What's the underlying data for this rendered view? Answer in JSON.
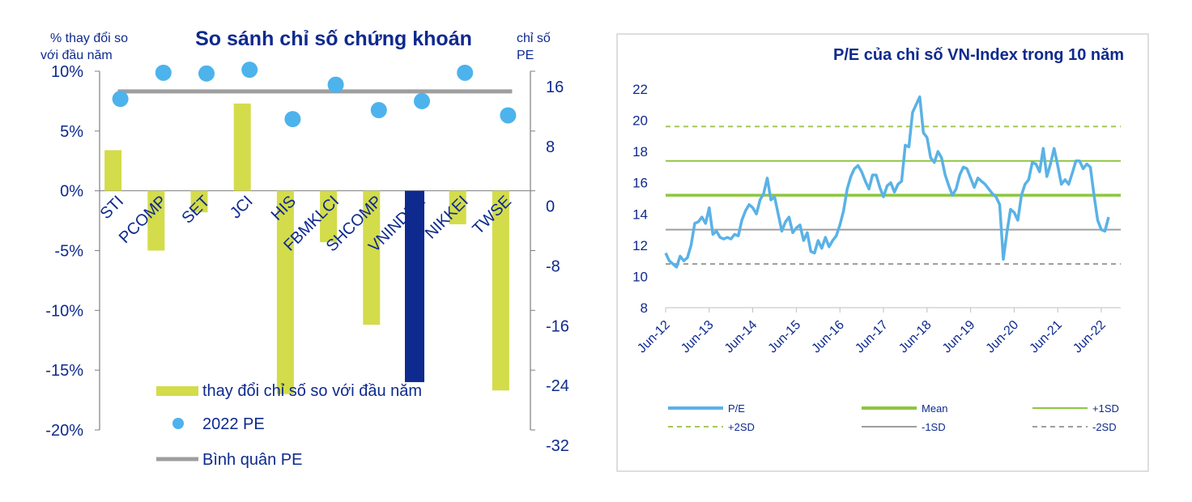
{
  "colors": {
    "bar": "#D3DC4A",
    "bar_highlight": "#0E2A8E",
    "dot": "#4DB3EC",
    "avg_line": "#9E9E9E",
    "text": "#0E2A8E",
    "axis": "#7F7F7F",
    "pe_line": "#5AB2E6",
    "mean": "#8DC63F",
    "sd1": "#8DC63F",
    "sd2": "#A6C75A",
    "neg_sd": "#9E9E9E"
  },
  "chart_data": [
    {
      "type": "bar",
      "title": "So sánh chỉ số chứng khoán",
      "left_axis_label_line1": "% thay đổi so",
      "left_axis_label_line2": "với đầu năm",
      "right_axis_label_line1": "chỉ số",
      "right_axis_label_line2": "PE",
      "categories": [
        "STI",
        "PCOMP",
        "SET",
        "JCI",
        "HIS",
        "FBMKLCI",
        "SHCOMP",
        "VNINDEX",
        "NIKKEI",
        "TWSE"
      ],
      "left_ticks": [
        "10%",
        "5%",
        "0%",
        "-5%",
        "-10%",
        "-15%",
        "-20%"
      ],
      "right_ticks": [
        "16",
        "8",
        "0",
        "-8",
        "-16",
        "-24",
        "-32"
      ],
      "ylim_left": [
        -20,
        10
      ],
      "ylim_right": [
        -32,
        16
      ],
      "series": [
        {
          "name": "thay đổi chỉ số so với đầu năm",
          "kind": "bar",
          "axis": "left",
          "values": [
            3.4,
            -5.0,
            -1.8,
            7.3,
            -17.0,
            -4.3,
            -11.2,
            -16.0,
            -2.8,
            -16.7
          ]
        },
        {
          "name": "2022 PE",
          "kind": "dot",
          "axis": "right",
          "values": [
            12.3,
            15.8,
            15.7,
            16.2,
            9.6,
            14.2,
            10.8,
            12.0,
            15.8,
            10.1
          ]
        },
        {
          "name": "Bình quân PE",
          "kind": "line",
          "axis": "right",
          "values": [
            13.3,
            13.3,
            13.3,
            13.3,
            13.3,
            13.3,
            13.3,
            13.3,
            13.3,
            13.3
          ]
        }
      ],
      "highlight_category": "VNINDEX",
      "legend": [
        "thay đổi chỉ số so với đầu năm",
        "2022 PE",
        "Bình quân PE"
      ]
    },
    {
      "type": "line",
      "title": "P/E của chỉ số VN-Index trong 10 năm",
      "yticks": [
        "22",
        "20",
        "18",
        "16",
        "14",
        "12",
        "10",
        "8"
      ],
      "ylim": [
        8,
        22
      ],
      "xlim": [
        0,
        120
      ],
      "xticks": [
        {
          "label": "Jun-12",
          "x": 0
        },
        {
          "label": "Jun-13",
          "x": 12
        },
        {
          "label": "Jun-14",
          "x": 24
        },
        {
          "label": "Jun-15",
          "x": 36
        },
        {
          "label": "Jun-16",
          "x": 48
        },
        {
          "label": "Jun-17",
          "x": 60
        },
        {
          "label": "Jun-18",
          "x": 72
        },
        {
          "label": "Jun-19",
          "x": 84
        },
        {
          "label": "Jun-20",
          "x": 96
        },
        {
          "label": "Jun-21",
          "x": 108
        },
        {
          "label": "Jun-22",
          "x": 120
        }
      ],
      "reference_lines": [
        {
          "name": "Mean",
          "value": 15.2
        },
        {
          "name": "+1SD",
          "value": 17.4
        },
        {
          "name": "+2SD",
          "value": 19.6
        },
        {
          "name": "-1SD",
          "value": 13.0
        },
        {
          "name": "-2SD",
          "value": 10.8
        }
      ],
      "series": [
        {
          "name": "P/E",
          "points": [
            [
              0,
              11.5
            ],
            [
              1,
              11.0
            ],
            [
              2,
              10.8
            ],
            [
              3,
              10.6
            ],
            [
              4,
              11.3
            ],
            [
              5,
              11.0
            ],
            [
              6,
              11.2
            ],
            [
              7,
              12.0
            ],
            [
              8,
              13.4
            ],
            [
              9,
              13.5
            ],
            [
              10,
              13.8
            ],
            [
              11,
              13.4
            ],
            [
              12,
              14.4
            ],
            [
              13,
              12.7
            ],
            [
              14,
              12.9
            ],
            [
              15,
              12.5
            ],
            [
              16,
              12.4
            ],
            [
              17,
              12.5
            ],
            [
              18,
              12.4
            ],
            [
              19,
              12.7
            ],
            [
              20,
              12.6
            ],
            [
              21,
              13.6
            ],
            [
              22,
              14.2
            ],
            [
              23,
              14.6
            ],
            [
              24,
              14.4
            ],
            [
              25,
              14.0
            ],
            [
              26,
              14.9
            ],
            [
              27,
              15.3
            ],
            [
              28,
              16.3
            ],
            [
              29,
              14.9
            ],
            [
              30,
              15.1
            ],
            [
              31,
              14.0
            ],
            [
              32,
              12.9
            ],
            [
              33,
              13.5
            ],
            [
              34,
              13.8
            ],
            [
              35,
              12.8
            ],
            [
              36,
              13.1
            ],
            [
              37,
              13.3
            ],
            [
              38,
              12.3
            ],
            [
              39,
              12.8
            ],
            [
              40,
              11.6
            ],
            [
              41,
              11.5
            ],
            [
              42,
              12.3
            ],
            [
              43,
              11.8
            ],
            [
              44,
              12.5
            ],
            [
              45,
              11.9
            ],
            [
              46,
              12.3
            ],
            [
              47,
              12.6
            ],
            [
              48,
              13.3
            ],
            [
              49,
              14.2
            ],
            [
              50,
              15.6
            ],
            [
              51,
              16.4
            ],
            [
              52,
              16.9
            ],
            [
              53,
              17.1
            ],
            [
              54,
              16.7
            ],
            [
              55,
              16.1
            ],
            [
              56,
              15.6
            ],
            [
              57,
              16.5
            ],
            [
              58,
              16.5
            ],
            [
              59,
              15.7
            ],
            [
              60,
              15.1
            ],
            [
              61,
              15.8
            ],
            [
              62,
              16.0
            ],
            [
              63,
              15.4
            ],
            [
              64,
              15.9
            ],
            [
              65,
              16.1
            ],
            [
              66,
              18.4
            ],
            [
              67,
              18.3
            ],
            [
              68,
              20.5
            ],
            [
              69,
              21.0
            ],
            [
              70,
              21.5
            ],
            [
              71,
              19.2
            ],
            [
              72,
              18.9
            ],
            [
              73,
              17.6
            ],
            [
              74,
              17.3
            ],
            [
              75,
              18.0
            ],
            [
              76,
              17.6
            ],
            [
              77,
              16.5
            ],
            [
              78,
              15.8
            ],
            [
              79,
              15.2
            ],
            [
              80,
              15.6
            ],
            [
              81,
              16.5
            ],
            [
              82,
              17.0
            ],
            [
              83,
              16.9
            ],
            [
              84,
              16.3
            ],
            [
              85,
              15.7
            ],
            [
              86,
              16.3
            ],
            [
              87,
              16.1
            ],
            [
              88,
              15.9
            ],
            [
              89,
              15.6
            ],
            [
              90,
              15.3
            ],
            [
              91,
              15.1
            ],
            [
              92,
              14.6
            ],
            [
              93,
              11.1
            ],
            [
              94,
              12.8
            ],
            [
              95,
              14.3
            ],
            [
              96,
              14.1
            ],
            [
              97,
              13.6
            ],
            [
              98,
              15.2
            ],
            [
              99,
              15.9
            ],
            [
              100,
              16.2
            ],
            [
              101,
              17.3
            ],
            [
              102,
              17.2
            ],
            [
              103,
              16.7
            ],
            [
              104,
              18.2
            ],
            [
              105,
              16.4
            ],
            [
              106,
              17.2
            ],
            [
              107,
              18.2
            ],
            [
              108,
              17.1
            ],
            [
              109,
              15.9
            ],
            [
              110,
              16.2
            ],
            [
              111,
              15.9
            ],
            [
              112,
              16.6
            ],
            [
              113,
              17.4
            ],
            [
              114,
              17.4
            ],
            [
              115,
              16.9
            ],
            [
              116,
              17.2
            ],
            [
              117,
              17.0
            ],
            [
              118,
              15.2
            ],
            [
              119,
              13.6
            ],
            [
              120,
              13.0
            ],
            [
              121,
              12.9
            ],
            [
              122,
              13.8
            ]
          ]
        }
      ],
      "legend": [
        "P/E",
        "Mean",
        "+1SD",
        "+2SD",
        "-1SD",
        "-2SD"
      ]
    }
  ]
}
